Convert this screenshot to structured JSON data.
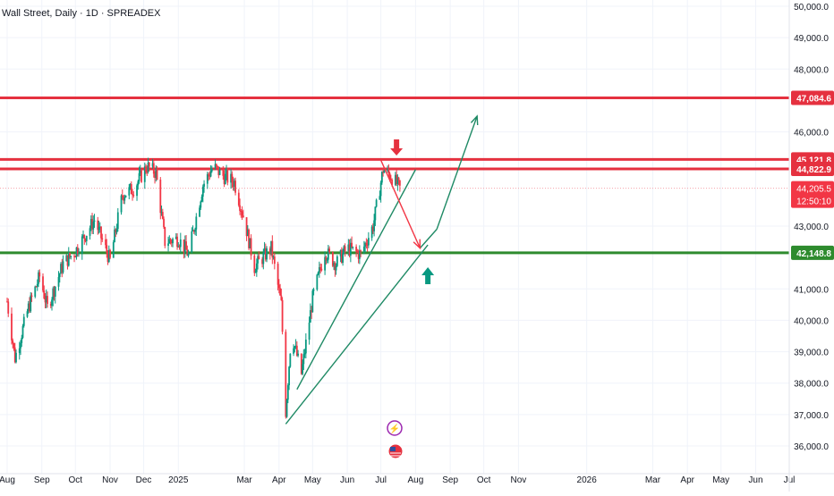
{
  "header": {
    "title": "Wall Street, Daily · 1D · SPREADEX"
  },
  "colors": {
    "up": "#089981",
    "down": "#f23645",
    "resistance": "#e5313f",
    "support": "#2e8b2e",
    "projection": "#1f8a65",
    "grid": "#f0f3fa",
    "axis_text": "#131722"
  },
  "chart_data": {
    "type": "candlestick",
    "title": "Wall Street, Daily · 1D · SPREADEX",
    "ylim": [
      35800,
      50000
    ],
    "y_ticks": [
      "50,000.0",
      "49,000.0",
      "48,000.0",
      "46,000.0",
      "43,000.0",
      "41,000.0",
      "40,000.0",
      "39,000.0",
      "38,000.0",
      "37,000.0",
      "36,000.0"
    ],
    "y_tick_values": [
      50000,
      49000,
      48000,
      46000,
      43000,
      41000,
      40000,
      39000,
      38000,
      37000,
      36000
    ],
    "x_ticks": [
      "Aug",
      "Sep",
      "Oct",
      "Nov",
      "Dec",
      "2025",
      "Mar",
      "Apr",
      "May",
      "Jun",
      "Jul",
      "Aug",
      "Sep",
      "Oct",
      "Nov",
      "2026",
      "Mar",
      "Apr",
      "May",
      "Jun",
      "Jul"
    ],
    "x_tick_dates": [
      "2024-08-01",
      "2024-09-01",
      "2024-10-01",
      "2024-11-01",
      "2024-12-01",
      "2025-01-01",
      "2025-03-01",
      "2025-04-01",
      "2025-05-01",
      "2025-06-01",
      "2025-07-01",
      "2025-08-01",
      "2025-09-01",
      "2025-10-01",
      "2025-11-01",
      "2026-01-01",
      "2026-03-01",
      "2026-04-01",
      "2026-05-01",
      "2026-06-01",
      "2026-07-01"
    ],
    "x_range": [
      "2024-08-01",
      "2026-07-01"
    ],
    "price_path": [
      {
        "date": "2024-08-01",
        "value": 40600
      },
      {
        "date": "2024-08-08",
        "value": 38800
      },
      {
        "date": "2024-08-20",
        "value": 40400
      },
      {
        "date": "2024-08-30",
        "value": 41400
      },
      {
        "date": "2024-09-06",
        "value": 40400
      },
      {
        "date": "2024-09-20",
        "value": 41800
      },
      {
        "date": "2024-10-01",
        "value": 42200
      },
      {
        "date": "2024-10-18",
        "value": 43200
      },
      {
        "date": "2024-11-01",
        "value": 41900
      },
      {
        "date": "2024-11-12",
        "value": 44000
      },
      {
        "date": "2024-11-22",
        "value": 44200
      },
      {
        "date": "2024-12-04",
        "value": 44900
      },
      {
        "date": "2024-12-12",
        "value": 44700
      },
      {
        "date": "2024-12-20",
        "value": 42500
      },
      {
        "date": "2025-01-01",
        "value": 42600
      },
      {
        "date": "2025-01-10",
        "value": 42100
      },
      {
        "date": "2025-01-23",
        "value": 44300
      },
      {
        "date": "2025-02-01",
        "value": 44900
      },
      {
        "date": "2025-02-10",
        "value": 44600
      },
      {
        "date": "2025-02-20",
        "value": 44400
      },
      {
        "date": "2025-03-01",
        "value": 43200
      },
      {
        "date": "2025-03-10",
        "value": 41700
      },
      {
        "date": "2025-03-25",
        "value": 42300
      },
      {
        "date": "2025-04-03",
        "value": 40500
      },
      {
        "date": "2025-04-07",
        "value": 37100
      },
      {
        "date": "2025-04-12",
        "value": 39600
      },
      {
        "date": "2025-04-21",
        "value": 38300
      },
      {
        "date": "2025-05-01",
        "value": 40700
      },
      {
        "date": "2025-05-12",
        "value": 42200
      },
      {
        "date": "2025-05-22",
        "value": 41800
      },
      {
        "date": "2025-06-01",
        "value": 42300
      },
      {
        "date": "2025-06-13",
        "value": 42100
      },
      {
        "date": "2025-06-24",
        "value": 43000
      },
      {
        "date": "2025-07-03",
        "value": 44800
      },
      {
        "date": "2025-07-10",
        "value": 44600
      },
      {
        "date": "2025-07-18",
        "value": 44200
      }
    ],
    "horizontal_levels": [
      {
        "label": "47,084.6",
        "value": 47084.6,
        "kind": "resistance"
      },
      {
        "label": "45,121.8",
        "value": 45121.8,
        "kind": "resistance"
      },
      {
        "label": "44,822.9",
        "value": 44822.9,
        "kind": "resistance"
      },
      {
        "label": "42,148.8",
        "value": 42148.8,
        "kind": "support"
      }
    ],
    "current_price": {
      "label": "44,205.5",
      "value": 44205.5,
      "countdown": "12:50:10"
    },
    "annotations": {
      "sell_arrow_date": "2025-07-15",
      "buy_arrow_date": "2025-08-12",
      "path_down": [
        {
          "date": "2025-07-01",
          "value": 45100
        },
        {
          "date": "2025-08-05",
          "value": 42300
        }
      ],
      "path_up": [
        {
          "date": "2025-08-05",
          "value": 42300
        },
        {
          "date": "2025-08-20",
          "value": 42900
        },
        {
          "date": "2025-09-25",
          "value": 46500
        }
      ],
      "trendline_1": [
        {
          "date": "2025-04-17",
          "value": 37800
        },
        {
          "date": "2025-08-01",
          "value": 44800
        }
      ],
      "trendline_2": [
        {
          "date": "2025-04-07",
          "value": 36700
        },
        {
          "date": "2025-08-12",
          "value": 42400
        }
      ]
    }
  }
}
